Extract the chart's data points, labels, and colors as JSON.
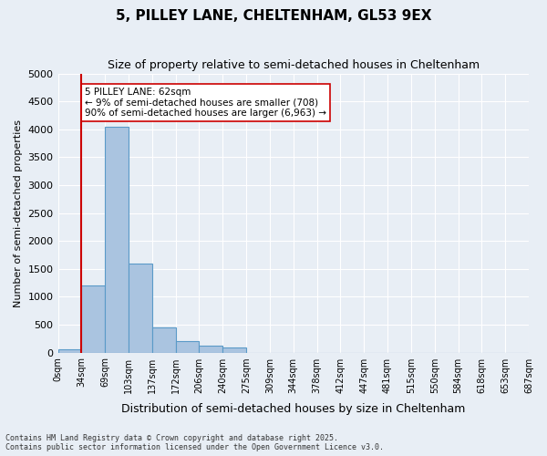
{
  "title": "5, PILLEY LANE, CHELTENHAM, GL53 9EX",
  "subtitle": "Size of property relative to semi-detached houses in Cheltenham",
  "xlabel": "Distribution of semi-detached houses by size in Cheltenham",
  "ylabel": "Number of semi-detached properties",
  "bin_labels": [
    "0sqm",
    "34sqm",
    "69sqm",
    "103sqm",
    "137sqm",
    "172sqm",
    "206sqm",
    "240sqm",
    "275sqm",
    "309sqm",
    "344sqm",
    "378sqm",
    "412sqm",
    "447sqm",
    "481sqm",
    "515sqm",
    "550sqm",
    "584sqm",
    "618sqm",
    "653sqm",
    "687sqm"
  ],
  "bar_heights": [
    50,
    1200,
    4050,
    1600,
    450,
    200,
    130,
    90,
    0,
    0,
    0,
    0,
    0,
    0,
    0,
    0,
    0,
    0,
    0,
    0
  ],
  "bar_color": "#aac4e0",
  "bar_edge_color": "#5a9ac8",
  "background_color": "#e8eef5",
  "grid_color": "#ffffff",
  "vline_x": 1,
  "vline_color": "#cc0000",
  "annotation_text": "5 PILLEY LANE: 62sqm\n← 9% of semi-detached houses are smaller (708)\n90% of semi-detached houses are larger (6,963) →",
  "annotation_box_color": "#ffffff",
  "annotation_box_edge": "#cc0000",
  "footer_text": "Contains HM Land Registry data © Crown copyright and database right 2025.\nContains public sector information licensed under the Open Government Licence v3.0.",
  "ylim": [
    0,
    5000
  ],
  "yticks": [
    0,
    500,
    1000,
    1500,
    2000,
    2500,
    3000,
    3500,
    4000,
    4500,
    5000
  ]
}
